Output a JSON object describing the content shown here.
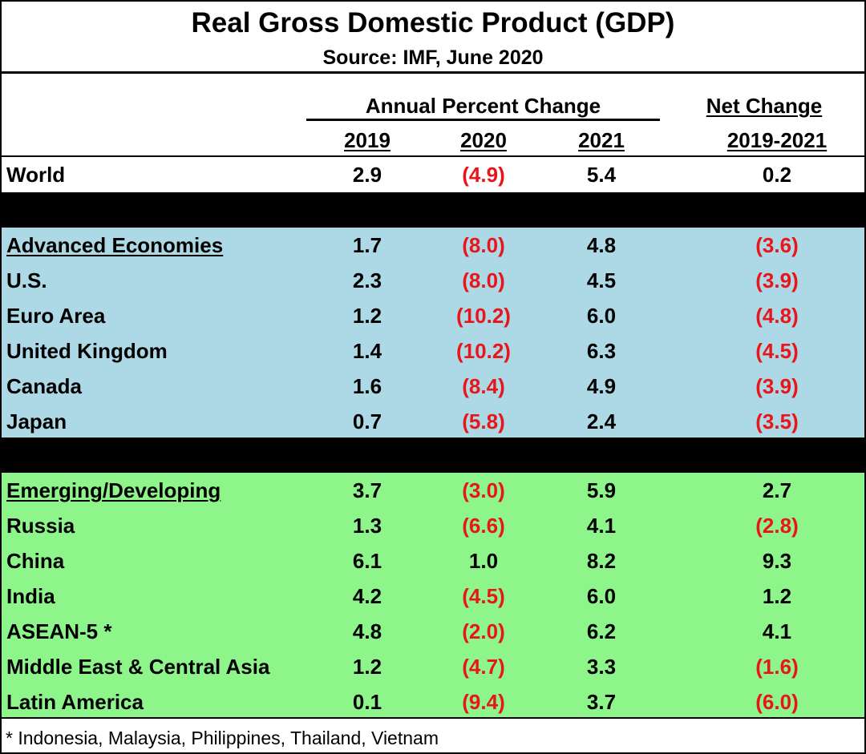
{
  "title": "Real Gross Domestic Product (GDP)",
  "subtitle": "Source:  IMF, June 2020",
  "group_headers": {
    "annual": "Annual Percent Change",
    "net": "Net Change"
  },
  "column_headers": [
    "2019",
    "2020",
    "2021",
    "2019-2021"
  ],
  "footnote": "* Indonesia, Malaysia, Philippines, Thailand, Vietnam",
  "colors": {
    "negative": "#e8161b",
    "advanced_band": "#add8e6",
    "emerging_band": "#8ef58b",
    "separator": "#000000"
  },
  "chart_data": {
    "type": "table",
    "title": "Real Gross Domestic Product (GDP)",
    "subtitle": "Source:  IMF, June 2020",
    "columns": [
      "2019",
      "2020",
      "2021",
      "2019-2021"
    ],
    "sections": [
      {
        "rows": [
          {
            "label": "World",
            "values": [
              2.9,
              -4.9,
              5.4,
              0.2
            ],
            "display": [
              "2.9",
              "(4.9)",
              "5.4",
              "0.2"
            ]
          }
        ]
      },
      {
        "header_underlined": true,
        "rows": [
          {
            "label": "Advanced Economies",
            "values": [
              1.7,
              -8.0,
              4.8,
              -3.6
            ],
            "display": [
              "1.7",
              "(8.0)",
              "4.8",
              "(3.6)"
            ]
          },
          {
            "label": "U.S.",
            "values": [
              2.3,
              -8.0,
              4.5,
              -3.9
            ],
            "display": [
              "2.3",
              "(8.0)",
              "4.5",
              "(3.9)"
            ]
          },
          {
            "label": "Euro Area",
            "values": [
              1.2,
              -10.2,
              6.0,
              -4.8
            ],
            "display": [
              "1.2",
              "(10.2)",
              "6.0",
              "(4.8)"
            ]
          },
          {
            "label": "United Kingdom",
            "values": [
              1.4,
              -10.2,
              6.3,
              -4.5
            ],
            "display": [
              "1.4",
              "(10.2)",
              "6.3",
              "(4.5)"
            ]
          },
          {
            "label": "Canada",
            "values": [
              1.6,
              -8.4,
              4.9,
              -3.9
            ],
            "display": [
              "1.6",
              "(8.4)",
              "4.9",
              "(3.9)"
            ]
          },
          {
            "label": "Japan",
            "values": [
              0.7,
              -5.8,
              2.4,
              -3.5
            ],
            "display": [
              "0.7",
              "(5.8)",
              "2.4",
              "(3.5)"
            ]
          }
        ]
      },
      {
        "header_underlined": true,
        "rows": [
          {
            "label": "Emerging/Developing",
            "values": [
              3.7,
              -3.0,
              5.9,
              2.7
            ],
            "display": [
              "3.7",
              "(3.0)",
              "5.9",
              "2.7"
            ]
          },
          {
            "label": "Russia",
            "values": [
              1.3,
              -6.6,
              4.1,
              -2.8
            ],
            "display": [
              "1.3",
              "(6.6)",
              "4.1",
              "(2.8)"
            ]
          },
          {
            "label": "China",
            "values": [
              6.1,
              1.0,
              8.2,
              9.3
            ],
            "display": [
              "6.1",
              "1.0",
              "8.2",
              "9.3"
            ]
          },
          {
            "label": "India",
            "values": [
              4.2,
              -4.5,
              6.0,
              1.2
            ],
            "display": [
              "4.2",
              "(4.5)",
              "6.0",
              "1.2"
            ]
          },
          {
            "label": "ASEAN-5 *",
            "values": [
              4.8,
              -2.0,
              6.2,
              4.1
            ],
            "display": [
              "4.8",
              "(2.0)",
              "6.2",
              "4.1"
            ]
          },
          {
            "label": "Middle East & Central Asia",
            "values": [
              1.2,
              -4.7,
              3.3,
              -1.6
            ],
            "display": [
              "1.2",
              "(4.7)",
              "3.3",
              "(1.6)"
            ]
          },
          {
            "label": "Latin America",
            "values": [
              0.1,
              -9.4,
              3.7,
              -6.0
            ],
            "display": [
              "0.1",
              "(9.4)",
              "3.7",
              "(6.0)"
            ]
          }
        ]
      }
    ]
  }
}
